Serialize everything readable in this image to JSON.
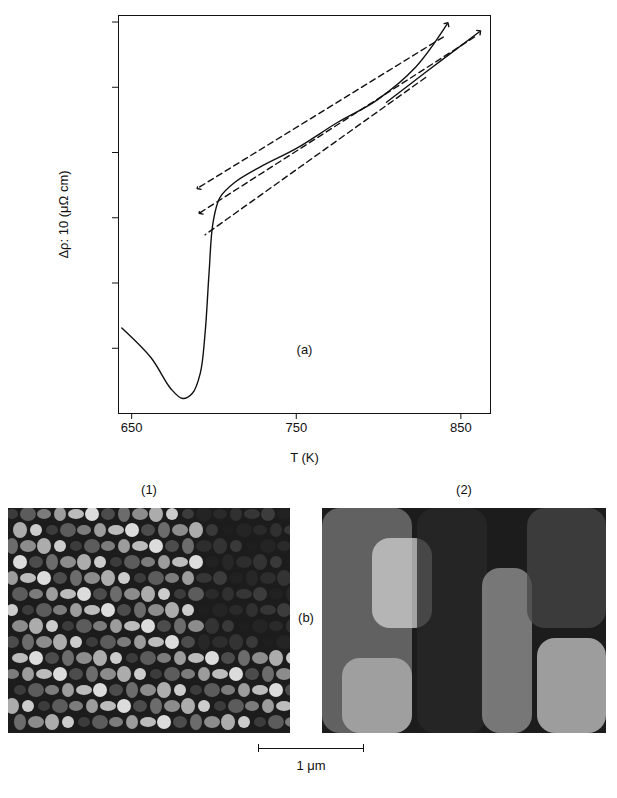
{
  "chart_data": {
    "type": "line",
    "panel_label": "(a)",
    "x_label": "T (K)",
    "y_label": "Δρ: 10 (μΩ cm)",
    "xlim": [
      642,
      868
    ],
    "xticks": [
      650,
      750,
      850
    ],
    "ylim": [
      0,
      61
    ],
    "yticks": [
      10,
      20,
      30,
      40,
      50,
      60
    ],
    "tick_labels": "x",
    "grid": false,
    "series": [
      {
        "color": "#111111",
        "line_style": "solid",
        "marker": "arrow",
        "x": [
          644.0,
          661.9,
          673.8,
          681.0,
          686.9,
          691.7,
          694.6,
          697.0,
          699.4,
          703.6,
          712.5,
          727.4,
          751.2,
          775.0,
          798.8,
          822.6,
          841.7
        ],
        "values": [
          13.1,
          8.5,
          3.8,
          2.3,
          3.1,
          6.2,
          12.3,
          21.5,
          29.2,
          33.1,
          35.4,
          37.7,
          40.8,
          44.6,
          48.0,
          53.1,
          59.7
        ]
      },
      {
        "color": "#111111",
        "line_style": "dashed",
        "marker": "arrow",
        "x": [
          839.3,
          690.5
        ],
        "values": [
          57.7,
          34.6
        ]
      },
      {
        "color": "#111111",
        "line_style": "solid",
        "marker": "arrow",
        "x": [
          804.8,
          828.6,
          861.3
        ],
        "values": [
          47.7,
          52.3,
          58.5
        ]
      },
      {
        "color": "#111111",
        "line_style": "dashed",
        "marker": "arrow",
        "x": [
          858.3,
          691.7
        ],
        "values": [
          57.7,
          30.8
        ]
      },
      {
        "color": "#111111",
        "line_style": "dashed",
        "marker": "none",
        "x": [
          828.6,
          694.6
        ],
        "values": [
          51.5,
          27.4
        ]
      }
    ]
  },
  "micrographs": {
    "panel_label": "(b)",
    "images": [
      {
        "label": "(1)"
      },
      {
        "label": "(2)"
      }
    ],
    "scale_bar": "1 μm"
  }
}
